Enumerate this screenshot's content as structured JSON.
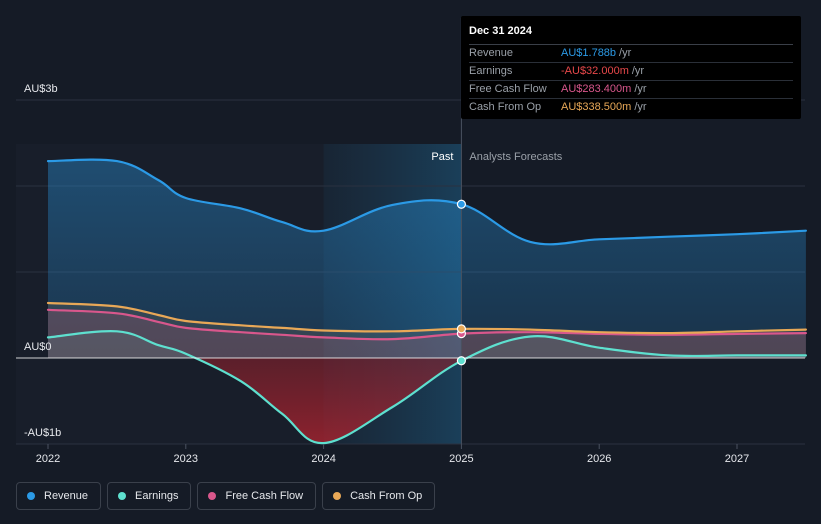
{
  "chart_data": {
    "type": "area",
    "currency_prefix": "AU$",
    "y_unit": "b",
    "ylim": [
      -1.0,
      3.0
    ],
    "xlim": [
      2022.0,
      2027.5
    ],
    "y_ticks": [
      {
        "value": 3.0,
        "label": "AU$3b"
      },
      {
        "value": 0.0,
        "label": "AU$0"
      },
      {
        "value": -1.0,
        "label": "-AU$1b"
      }
    ],
    "x_ticks": [
      {
        "value": 2022,
        "label": "2022"
      },
      {
        "value": 2023,
        "label": "2023"
      },
      {
        "value": 2024,
        "label": "2024"
      },
      {
        "value": 2025,
        "label": "2025"
      },
      {
        "value": 2026,
        "label": "2026"
      },
      {
        "value": 2027,
        "label": "2027"
      }
    ],
    "divider_x": 2025.0,
    "highlight_start_x": 2024.0,
    "past_label": "Past",
    "forecast_label": "Analysts Forecasts",
    "series": [
      {
        "name": "Revenue",
        "color": "#2b9ae6",
        "x": [
          2022.0,
          2022.5,
          2022.8,
          2023.0,
          2023.4,
          2023.7,
          2024.0,
          2024.5,
          2025.0,
          2025.5,
          2026.0,
          2026.5,
          2027.0,
          2027.5
        ],
        "values": [
          2.29,
          2.29,
          2.07,
          1.86,
          1.74,
          1.58,
          1.48,
          1.78,
          1.788,
          1.35,
          1.38,
          1.41,
          1.44,
          1.48
        ]
      },
      {
        "name": "Earnings",
        "color": "#5ee0cf",
        "x": [
          2022.0,
          2022.5,
          2022.8,
          2023.0,
          2023.4,
          2023.7,
          2024.0,
          2024.5,
          2025.0,
          2025.5,
          2026.0,
          2026.5,
          2027.0,
          2027.5
        ],
        "values": [
          0.24,
          0.31,
          0.15,
          0.05,
          -0.27,
          -0.65,
          -0.99,
          -0.57,
          -0.032,
          0.25,
          0.12,
          0.03,
          0.03,
          0.03
        ]
      },
      {
        "name": "Free Cash Flow",
        "color": "#d9578c",
        "x": [
          2022.0,
          2022.5,
          2022.8,
          2023.0,
          2023.4,
          2023.7,
          2024.0,
          2024.5,
          2025.0,
          2025.5,
          2026.0,
          2026.5,
          2027.0,
          2027.5
        ],
        "values": [
          0.56,
          0.52,
          0.42,
          0.35,
          0.3,
          0.27,
          0.24,
          0.22,
          0.2834,
          0.3,
          0.28,
          0.27,
          0.28,
          0.29
        ]
      },
      {
        "name": "Cash From Op",
        "color": "#e8a857",
        "x": [
          2022.0,
          2022.5,
          2022.8,
          2023.0,
          2023.4,
          2023.7,
          2024.0,
          2024.5,
          2025.0,
          2025.5,
          2026.0,
          2026.5,
          2027.0,
          2027.5
        ],
        "values": [
          0.64,
          0.6,
          0.5,
          0.43,
          0.38,
          0.35,
          0.32,
          0.31,
          0.3385,
          0.33,
          0.3,
          0.29,
          0.31,
          0.33
        ]
      }
    ]
  },
  "tooltip": {
    "date": "Dec 31 2024",
    "rows": [
      {
        "name": "Revenue",
        "value": "AU$1.788b",
        "unit": "/yr",
        "color": "#2b9ae6"
      },
      {
        "name": "Earnings",
        "value": "-AU$32.000m",
        "unit": "/yr",
        "color": "#e8484a"
      },
      {
        "name": "Free Cash Flow",
        "value": "AU$283.400m",
        "unit": "/yr",
        "color": "#d9578c"
      },
      {
        "name": "Cash From Op",
        "value": "AU$338.500m",
        "unit": "/yr",
        "color": "#e8a857"
      }
    ]
  },
  "legend": {
    "items": [
      {
        "label": "Revenue",
        "color": "#2b9ae6"
      },
      {
        "label": "Earnings",
        "color": "#5ee0cf"
      },
      {
        "label": "Free Cash Flow",
        "color": "#d9578c"
      },
      {
        "label": "Cash From Op",
        "color": "#e8a857"
      }
    ]
  }
}
